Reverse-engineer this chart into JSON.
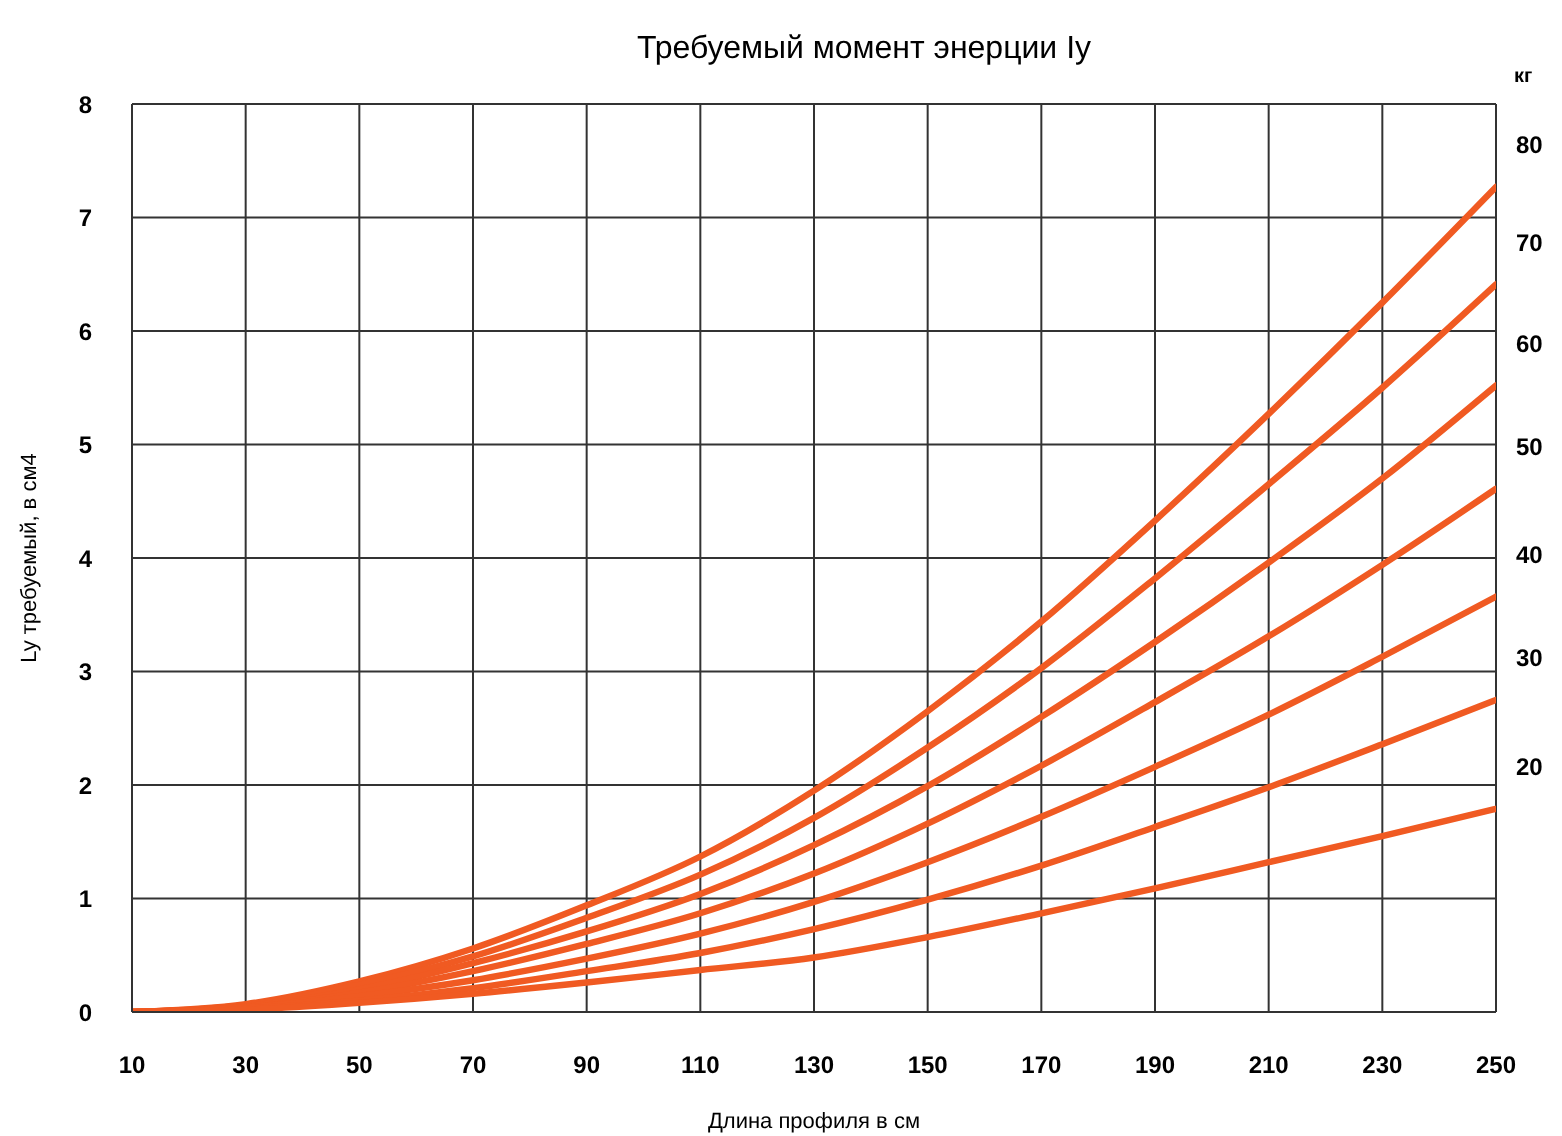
{
  "chart_data": {
    "type": "line",
    "title": "Требуемый момент энерции Iy",
    "xlabel": "Длина профиля в см",
    "ylabel": "Ly требуемый, в см4",
    "legend_title": "кг",
    "x": [
      10,
      30,
      50,
      70,
      90,
      110,
      130,
      150,
      170,
      190,
      210,
      230,
      250
    ],
    "xlim": [
      10,
      250
    ],
    "xticks": [
      10,
      30,
      50,
      70,
      90,
      110,
      130,
      150,
      170,
      190,
      210,
      230,
      250
    ],
    "ylim": [
      0,
      8
    ],
    "yticks": [
      0,
      1,
      2,
      3,
      4,
      5,
      6,
      7,
      8
    ],
    "grid": true,
    "line_style": "solid",
    "series": [
      {
        "name": "80",
        "color": "#f05a22",
        "values": [
          0,
          0.07,
          0.27,
          0.56,
          0.94,
          1.37,
          1.95,
          2.65,
          3.44,
          4.33,
          5.27,
          6.25,
          7.27
        ]
      },
      {
        "name": "70",
        "color": "#f05a22",
        "values": [
          0,
          0.06,
          0.24,
          0.49,
          0.83,
          1.21,
          1.71,
          2.33,
          3.03,
          3.82,
          4.65,
          5.5,
          6.41
        ]
      },
      {
        "name": "60",
        "color": "#f05a22",
        "values": [
          0,
          0.05,
          0.2,
          0.43,
          0.71,
          1.04,
          1.47,
          1.99,
          2.6,
          3.26,
          3.96,
          4.7,
          5.52
        ]
      },
      {
        "name": "50",
        "color": "#f05a22",
        "values": [
          0,
          0.04,
          0.17,
          0.36,
          0.6,
          0.87,
          1.22,
          1.66,
          2.17,
          2.73,
          3.31,
          3.94,
          4.61
        ]
      },
      {
        "name": "40",
        "color": "#f05a22",
        "values": [
          0,
          0.04,
          0.14,
          0.28,
          0.47,
          0.69,
          0.97,
          1.32,
          1.72,
          2.16,
          2.62,
          3.13,
          3.66
        ]
      },
      {
        "name": "30",
        "color": "#f05a22",
        "values": [
          0,
          0.03,
          0.1,
          0.21,
          0.36,
          0.52,
          0.73,
          0.99,
          1.29,
          1.63,
          1.98,
          2.36,
          2.75
        ]
      },
      {
        "name": "20",
        "color": "#f05a22",
        "values": [
          0,
          0.02,
          0.08,
          0.16,
          0.26,
          0.37,
          0.48,
          0.66,
          0.87,
          1.09,
          1.32,
          1.55,
          1.79
        ]
      }
    ]
  }
}
